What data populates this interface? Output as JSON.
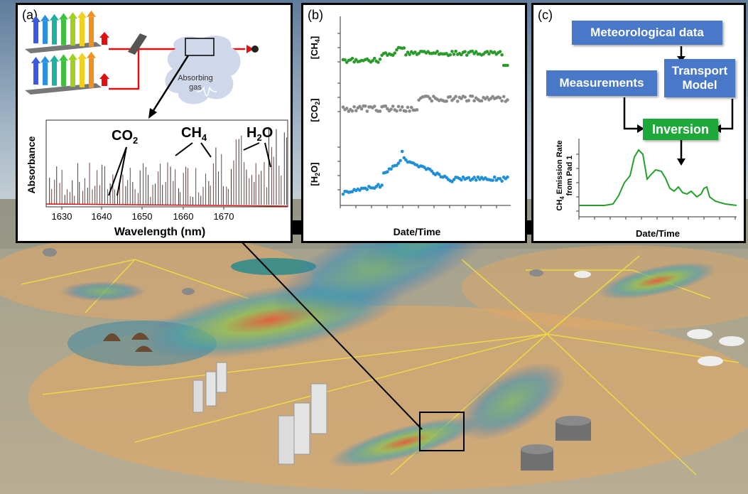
{
  "panels": {
    "a": {
      "label": "(a)",
      "absorbing_gas_label": "Absorbing gas",
      "spectrum": {
        "ylabel": "Absorbance",
        "xlabel": "Wavelength (nm)",
        "xticks": [
          "1630",
          "1640",
          "1650",
          "1660",
          "1670"
        ],
        "co2_label": "CO",
        "co2_sub": "2",
        "ch4_label": "CH",
        "ch4_sub": "4",
        "h2o_label": "H",
        "h2o_sub": "2",
        "h2o_tail": "O"
      }
    },
    "b": {
      "label": "(b)",
      "xlabel": "Date/Time",
      "rows": [
        {
          "ylabel": "[CH",
          "sub": "4",
          "close": "]",
          "color": "#2a9a2a"
        },
        {
          "ylabel": "[CO",
          "sub": "2",
          "close": "]",
          "color": "#8a8a8a"
        },
        {
          "ylabel": "[H",
          "sub": "2",
          "close": "O]",
          "color": "#1f8fd6"
        }
      ]
    },
    "c": {
      "label": "(c)",
      "boxes": {
        "meteorological": "Meteorological data",
        "measurements": "Measurements",
        "transport": "Transport Model",
        "inversion": "Inversion"
      },
      "ylabel_1": "CH",
      "ylabel_sub": "4",
      "ylabel_2": " Emission Rate",
      "ylabel_3": "from Pad 1",
      "xlabel": "Date/Time",
      "line_color": "#22a02a"
    }
  },
  "colors": {
    "laser_red": "#e01010",
    "panel_border": "#000000",
    "box_blue": "#4a78c8",
    "box_green": "#1fa83a"
  }
}
